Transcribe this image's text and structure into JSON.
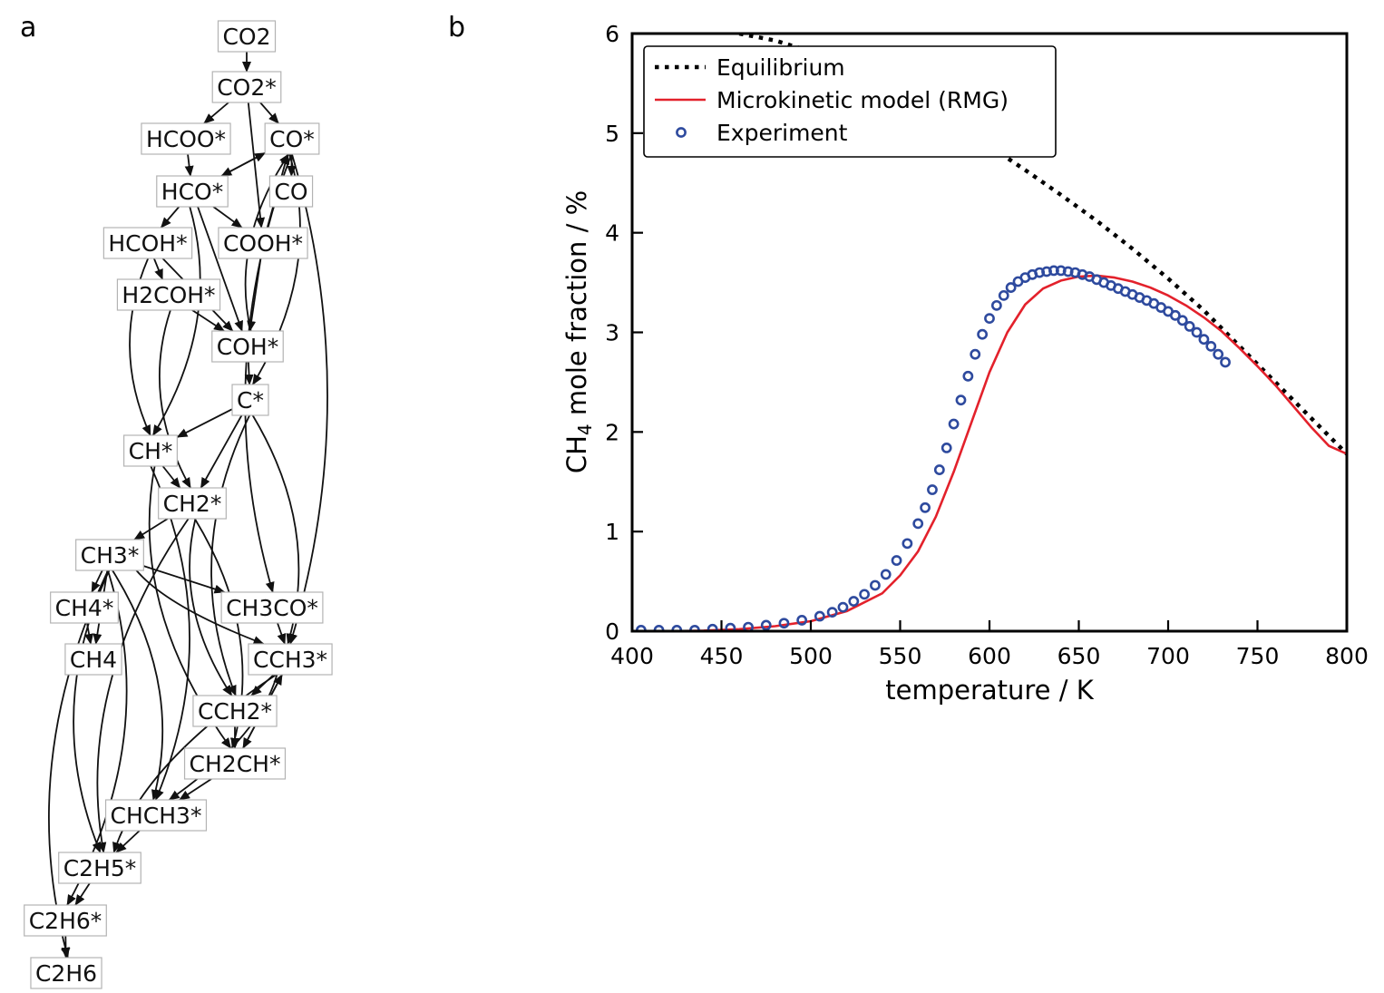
{
  "panels": {
    "a": "a",
    "b": "b"
  },
  "network": {
    "nodes": [
      {
        "id": "CO2",
        "label": "CO2"
      },
      {
        "id": "CO2s",
        "label": "CO2*"
      },
      {
        "id": "HCOOs",
        "label": "HCOO*"
      },
      {
        "id": "COs",
        "label": "CO*"
      },
      {
        "id": "HCOs",
        "label": "HCO*"
      },
      {
        "id": "CO",
        "label": "CO"
      },
      {
        "id": "HCOHs",
        "label": "HCOH*"
      },
      {
        "id": "COOHs",
        "label": "COOH*"
      },
      {
        "id": "H2COHs",
        "label": "H2COH*"
      },
      {
        "id": "COHs",
        "label": "COH*"
      },
      {
        "id": "Cs",
        "label": "C*"
      },
      {
        "id": "CHs",
        "label": "CH*"
      },
      {
        "id": "CH2s",
        "label": "CH2*"
      },
      {
        "id": "CH3s",
        "label": "CH3*"
      },
      {
        "id": "CH4s",
        "label": "CH4*"
      },
      {
        "id": "CH3COs",
        "label": "CH3CO*"
      },
      {
        "id": "CH4",
        "label": "CH4"
      },
      {
        "id": "CCH3s",
        "label": "CCH3*"
      },
      {
        "id": "CCH2s",
        "label": "CCH2*"
      },
      {
        "id": "CH2CHs",
        "label": "CH2CH*"
      },
      {
        "id": "CHCH3s",
        "label": "CHCH3*"
      },
      {
        "id": "C2H5s",
        "label": "C2H5*"
      },
      {
        "id": "C2H6s",
        "label": "C2H6*"
      },
      {
        "id": "C2H6",
        "label": "C2H6"
      }
    ],
    "edges": [
      [
        "CO2",
        "CO2s"
      ],
      [
        "CO2s",
        "HCOOs"
      ],
      [
        "CO2s",
        "COs"
      ],
      [
        "CO2s",
        "COOHs"
      ],
      [
        "HCOOs",
        "HCOs"
      ],
      [
        "COs",
        "HCOs"
      ],
      [
        "COs",
        "CO"
      ],
      [
        "HCOs",
        "COs"
      ],
      [
        "HCOs",
        "HCOHs"
      ],
      [
        "HCOs",
        "COOHs"
      ],
      [
        "HCOs",
        "COHs"
      ],
      [
        "HCOs",
        "CHs"
      ],
      [
        "COOHs",
        "COs"
      ],
      [
        "COOHs",
        "COHs"
      ],
      [
        "HCOHs",
        "H2COHs"
      ],
      [
        "HCOHs",
        "COHs"
      ],
      [
        "HCOHs",
        "CHs"
      ],
      [
        "H2COHs",
        "COHs"
      ],
      [
        "H2COHs",
        "CH2s"
      ],
      [
        "COHs",
        "Cs"
      ],
      [
        "COHs",
        "COs"
      ],
      [
        "COs",
        "Cs"
      ],
      [
        "COs",
        "CH3COs"
      ],
      [
        "COs",
        "CCH3s"
      ],
      [
        "Cs",
        "CHs"
      ],
      [
        "Cs",
        "CH2s"
      ],
      [
        "Cs",
        "CCH2s"
      ],
      [
        "Cs",
        "CCH3s"
      ],
      [
        "CHs",
        "CH2s"
      ],
      [
        "CHs",
        "CHCH3s"
      ],
      [
        "CHs",
        "CH2CHs"
      ],
      [
        "CH2s",
        "CH3s"
      ],
      [
        "CH2s",
        "CCH2s"
      ],
      [
        "CH2s",
        "CH2CHs"
      ],
      [
        "CH2s",
        "C2H5s"
      ],
      [
        "CH3s",
        "CH4s"
      ],
      [
        "CH3s",
        "CH4"
      ],
      [
        "CH3s",
        "CH3COs"
      ],
      [
        "CH3s",
        "CCH3s"
      ],
      [
        "CH3s",
        "CHCH3s"
      ],
      [
        "CH3s",
        "C2H5s"
      ],
      [
        "CH3s",
        "C2H6s"
      ],
      [
        "CH3s",
        "C2H6"
      ],
      [
        "CH4s",
        "CH4"
      ],
      [
        "CH3COs",
        "CCH3s"
      ],
      [
        "CCH3s",
        "CCH2s"
      ],
      [
        "CCH3s",
        "CH2CHs"
      ],
      [
        "CCH3s",
        "CHCH3s"
      ],
      [
        "CCH3s",
        "C2H5s"
      ],
      [
        "CCH2s",
        "CH2CHs"
      ],
      [
        "CH2CHs",
        "CCH3s"
      ],
      [
        "CH2CHs",
        "CHCH3s"
      ],
      [
        "CHCH3s",
        "C2H5s"
      ],
      [
        "C2H5s",
        "C2H6s"
      ],
      [
        "C2H6s",
        "C2H6"
      ]
    ]
  },
  "chart_data": {
    "type": "line",
    "title": "",
    "xlabel": "temperature / K",
    "ylabel": "CH4 mole fraction / %",
    "ylabel_parts": {
      "pre": "CH",
      "sub": "4",
      "post": " mole fraction / %"
    },
    "xlim": [
      400,
      800
    ],
    "ylim": [
      0,
      6
    ],
    "xticks": [
      400,
      450,
      500,
      550,
      600,
      650,
      700,
      750,
      800
    ],
    "yticks": [
      0,
      1,
      2,
      3,
      4,
      5,
      6
    ],
    "grid": false,
    "legend_position": "top-left",
    "series": [
      {
        "name": "Equilibrium",
        "style": "dotted",
        "color": "#000000",
        "x": [
          460,
          480,
          500,
          520,
          540,
          560,
          580,
          600,
          620,
          640,
          660,
          680,
          700,
          720,
          740,
          760,
          780,
          800
        ],
        "y": [
          6.0,
          5.93,
          5.82,
          5.68,
          5.51,
          5.31,
          5.1,
          4.87,
          4.63,
          4.38,
          4.12,
          3.84,
          3.54,
          3.22,
          2.86,
          2.5,
          2.14,
          1.78
        ]
      },
      {
        "name": "Microkinetic model (RMG)",
        "style": "solid",
        "color": "#e3212b",
        "x": [
          420,
          440,
          460,
          480,
          500,
          520,
          540,
          550,
          560,
          570,
          580,
          590,
          600,
          610,
          620,
          630,
          640,
          650,
          660,
          670,
          680,
          690,
          700,
          710,
          720,
          730,
          740,
          750,
          760,
          770,
          780,
          790,
          800
        ],
        "y": [
          0.0,
          0.005,
          0.02,
          0.05,
          0.1,
          0.2,
          0.38,
          0.56,
          0.8,
          1.15,
          1.6,
          2.1,
          2.6,
          3.0,
          3.28,
          3.44,
          3.52,
          3.56,
          3.57,
          3.55,
          3.51,
          3.45,
          3.37,
          3.27,
          3.15,
          3.01,
          2.84,
          2.66,
          2.47,
          2.26,
          2.05,
          1.86,
          1.78
        ]
      },
      {
        "name": "Experiment",
        "style": "markers",
        "color": "#2e4a9e",
        "x": [
          405,
          415,
          425,
          435,
          445,
          455,
          465,
          475,
          485,
          495,
          505,
          512,
          518,
          524,
          530,
          536,
          542,
          548,
          554,
          560,
          564,
          568,
          572,
          576,
          580,
          584,
          588,
          592,
          596,
          600,
          604,
          608,
          612,
          616,
          620,
          624,
          628,
          632,
          636,
          640,
          644,
          648,
          652,
          656,
          660,
          664,
          668,
          672,
          676,
          680,
          684,
          688,
          692,
          696,
          700,
          704,
          708,
          712,
          716,
          720,
          724,
          728,
          732
        ],
        "y": [
          0.01,
          0.01,
          0.01,
          0.01,
          0.02,
          0.03,
          0.04,
          0.06,
          0.08,
          0.11,
          0.15,
          0.19,
          0.24,
          0.3,
          0.37,
          0.46,
          0.57,
          0.71,
          0.88,
          1.08,
          1.24,
          1.42,
          1.62,
          1.84,
          2.08,
          2.32,
          2.56,
          2.78,
          2.98,
          3.14,
          3.27,
          3.37,
          3.45,
          3.51,
          3.55,
          3.58,
          3.6,
          3.61,
          3.62,
          3.62,
          3.61,
          3.6,
          3.58,
          3.56,
          3.53,
          3.5,
          3.47,
          3.44,
          3.41,
          3.38,
          3.35,
          3.32,
          3.29,
          3.25,
          3.21,
          3.17,
          3.12,
          3.06,
          3.0,
          2.93,
          2.86,
          2.78,
          2.7
        ]
      }
    ]
  }
}
